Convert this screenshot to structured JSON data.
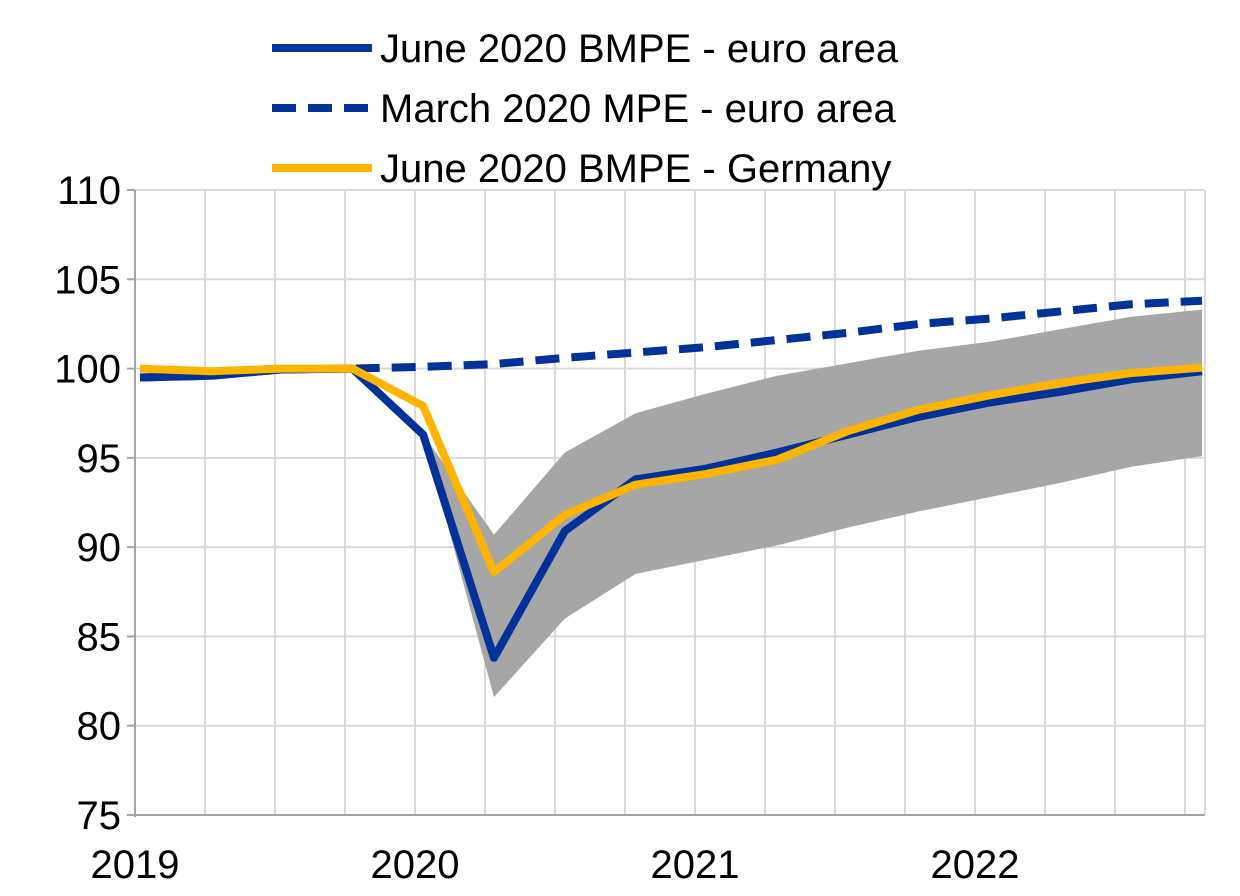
{
  "chart_data": {
    "type": "line",
    "title": "",
    "xlabel": "",
    "ylabel": "",
    "ylim": [
      75,
      110
    ],
    "yticks": [
      "75",
      "80",
      "85",
      "90",
      "95",
      "100",
      "105",
      "110"
    ],
    "xtick_labels": [
      "2019",
      "2020",
      "2021",
      "2022"
    ],
    "x": [
      "2019Q1",
      "2019Q2",
      "2019Q3",
      "2019Q4",
      "2020Q1",
      "2020Q2",
      "2020Q3",
      "2020Q4",
      "2021Q1",
      "2021Q2",
      "2021Q3",
      "2021Q4",
      "2022Q1",
      "2022Q2",
      "2022Q3",
      "2022Q4"
    ],
    "grid": true,
    "legend_position": "top",
    "series": [
      {
        "name": "June 2020 BMPE - euro area",
        "color": "#003299",
        "style": "solid",
        "values": [
          99.5,
          99.6,
          99.95,
          100.0,
          96.3,
          83.8,
          90.9,
          93.8,
          94.4,
          95.3,
          96.3,
          97.3,
          98.1,
          98.7,
          99.4,
          99.85
        ]
      },
      {
        "name": "March 2020 MPE - euro area",
        "color": "#003299",
        "style": "dashed",
        "values": [
          99.5,
          99.6,
          99.95,
          100.0,
          100.1,
          100.25,
          100.6,
          100.9,
          101.2,
          101.6,
          102.0,
          102.5,
          102.8,
          103.2,
          103.6,
          103.8
        ]
      },
      {
        "name": "June 2020 BMPE - Germany",
        "color": "#FFB400",
        "style": "solid",
        "values": [
          100.0,
          99.85,
          100.0,
          100.0,
          97.9,
          88.6,
          91.8,
          93.5,
          94.1,
          94.9,
          96.5,
          97.7,
          98.5,
          99.2,
          99.75,
          100.05
        ]
      }
    ],
    "band": {
      "color": "#A6A6A6",
      "start_index": 4,
      "upper": [
        96.3,
        90.7,
        95.3,
        97.5,
        98.6,
        99.6,
        100.3,
        101.0,
        101.5,
        102.2,
        102.9,
        103.3
      ],
      "lower": [
        96.3,
        81.6,
        86.0,
        88.5,
        89.3,
        90.1,
        91.1,
        92.0,
        92.8,
        93.6,
        94.5,
        95.1
      ]
    }
  }
}
